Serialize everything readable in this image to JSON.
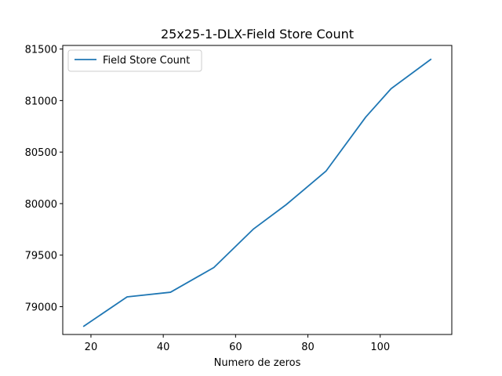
{
  "chart_data": {
    "type": "line",
    "title": "25x25-1-DLX-Field Store Count",
    "xlabel": "Numero de zeros",
    "ylabel": "",
    "xlim": [
      12.2,
      119.8
    ],
    "ylim": [
      78730,
      81535
    ],
    "xticks": [
      20,
      40,
      60,
      80,
      100
    ],
    "yticks": [
      79000,
      79500,
      80000,
      80500,
      81000,
      81500
    ],
    "grid": false,
    "legend_position": "upper-left",
    "series": [
      {
        "name": "Field Store Count",
        "color": "#1f77b4",
        "x": [
          18,
          30,
          42,
          54,
          65,
          74,
          85,
          96,
          103,
          114
        ],
        "y": [
          78810,
          79095,
          79140,
          79380,
          79755,
          79990,
          80315,
          80840,
          81115,
          81400
        ]
      }
    ]
  }
}
